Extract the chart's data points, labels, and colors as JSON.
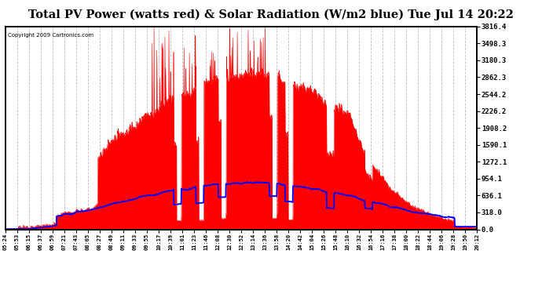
{
  "title": "Total PV Power (watts red) & Solar Radiation (W/m2 blue) Tue Jul 14 20:22",
  "copyright": "Copyright 2009 Cartronics.com",
  "yticks": [
    0.0,
    318.0,
    636.1,
    954.1,
    1272.1,
    1590.1,
    1908.2,
    2226.2,
    2544.2,
    2862.3,
    3180.3,
    3498.3,
    3816.4
  ],
  "ymax": 3816.4,
  "ymin": 0.0,
  "bg_color": "#ffffff",
  "plot_bg": "#ffffff",
  "grid_color": "#cccccc",
  "pv_color": "#ff0000",
  "solar_color": "#0000ff",
  "title_fontsize": 11,
  "xtick_labels": [
    "05:24",
    "05:53",
    "06:15",
    "06:37",
    "06:59",
    "07:21",
    "07:43",
    "08:05",
    "08:27",
    "08:49",
    "09:11",
    "09:33",
    "09:55",
    "10:17",
    "10:39",
    "11:01",
    "11:23",
    "11:46",
    "12:08",
    "12:30",
    "12:52",
    "13:14",
    "13:36",
    "13:58",
    "14:20",
    "14:42",
    "15:04",
    "15:26",
    "15:48",
    "16:10",
    "16:32",
    "16:54",
    "17:16",
    "17:38",
    "18:00",
    "18:22",
    "18:44",
    "19:06",
    "19:28",
    "19:50",
    "20:12"
  ]
}
